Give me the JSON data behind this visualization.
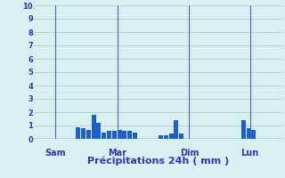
{
  "title": "Précipitations 24h ( mm )",
  "background_color": "#d8f0f0",
  "bar_color": "#1a5fd4",
  "grid_color": "#b0c8c8",
  "axis_color": "#4466cc",
  "text_color": "#3333cc",
  "ylim": [
    0,
    10
  ],
  "yticks": [
    0,
    1,
    2,
    3,
    4,
    5,
    6,
    7,
    8,
    9,
    10
  ],
  "day_labels": [
    "Sam",
    "Mar",
    "Dim",
    "Lun"
  ],
  "day_positions": [
    0.085,
    0.335,
    0.625,
    0.87
  ],
  "num_bars": 48,
  "bar_values": [
    0,
    0,
    0,
    0,
    0,
    0,
    0,
    0,
    0.9,
    0.8,
    0.7,
    1.8,
    1.2,
    0.5,
    0.6,
    0.6,
    0.7,
    0.6,
    0.6,
    0.5,
    0,
    0,
    0,
    0,
    0.3,
    0.3,
    0.4,
    1.4,
    0.4,
    0,
    0,
    0,
    0,
    0,
    0,
    0,
    0,
    0,
    0,
    0,
    1.4,
    0.8,
    0.7,
    0,
    0,
    0,
    0,
    0
  ]
}
